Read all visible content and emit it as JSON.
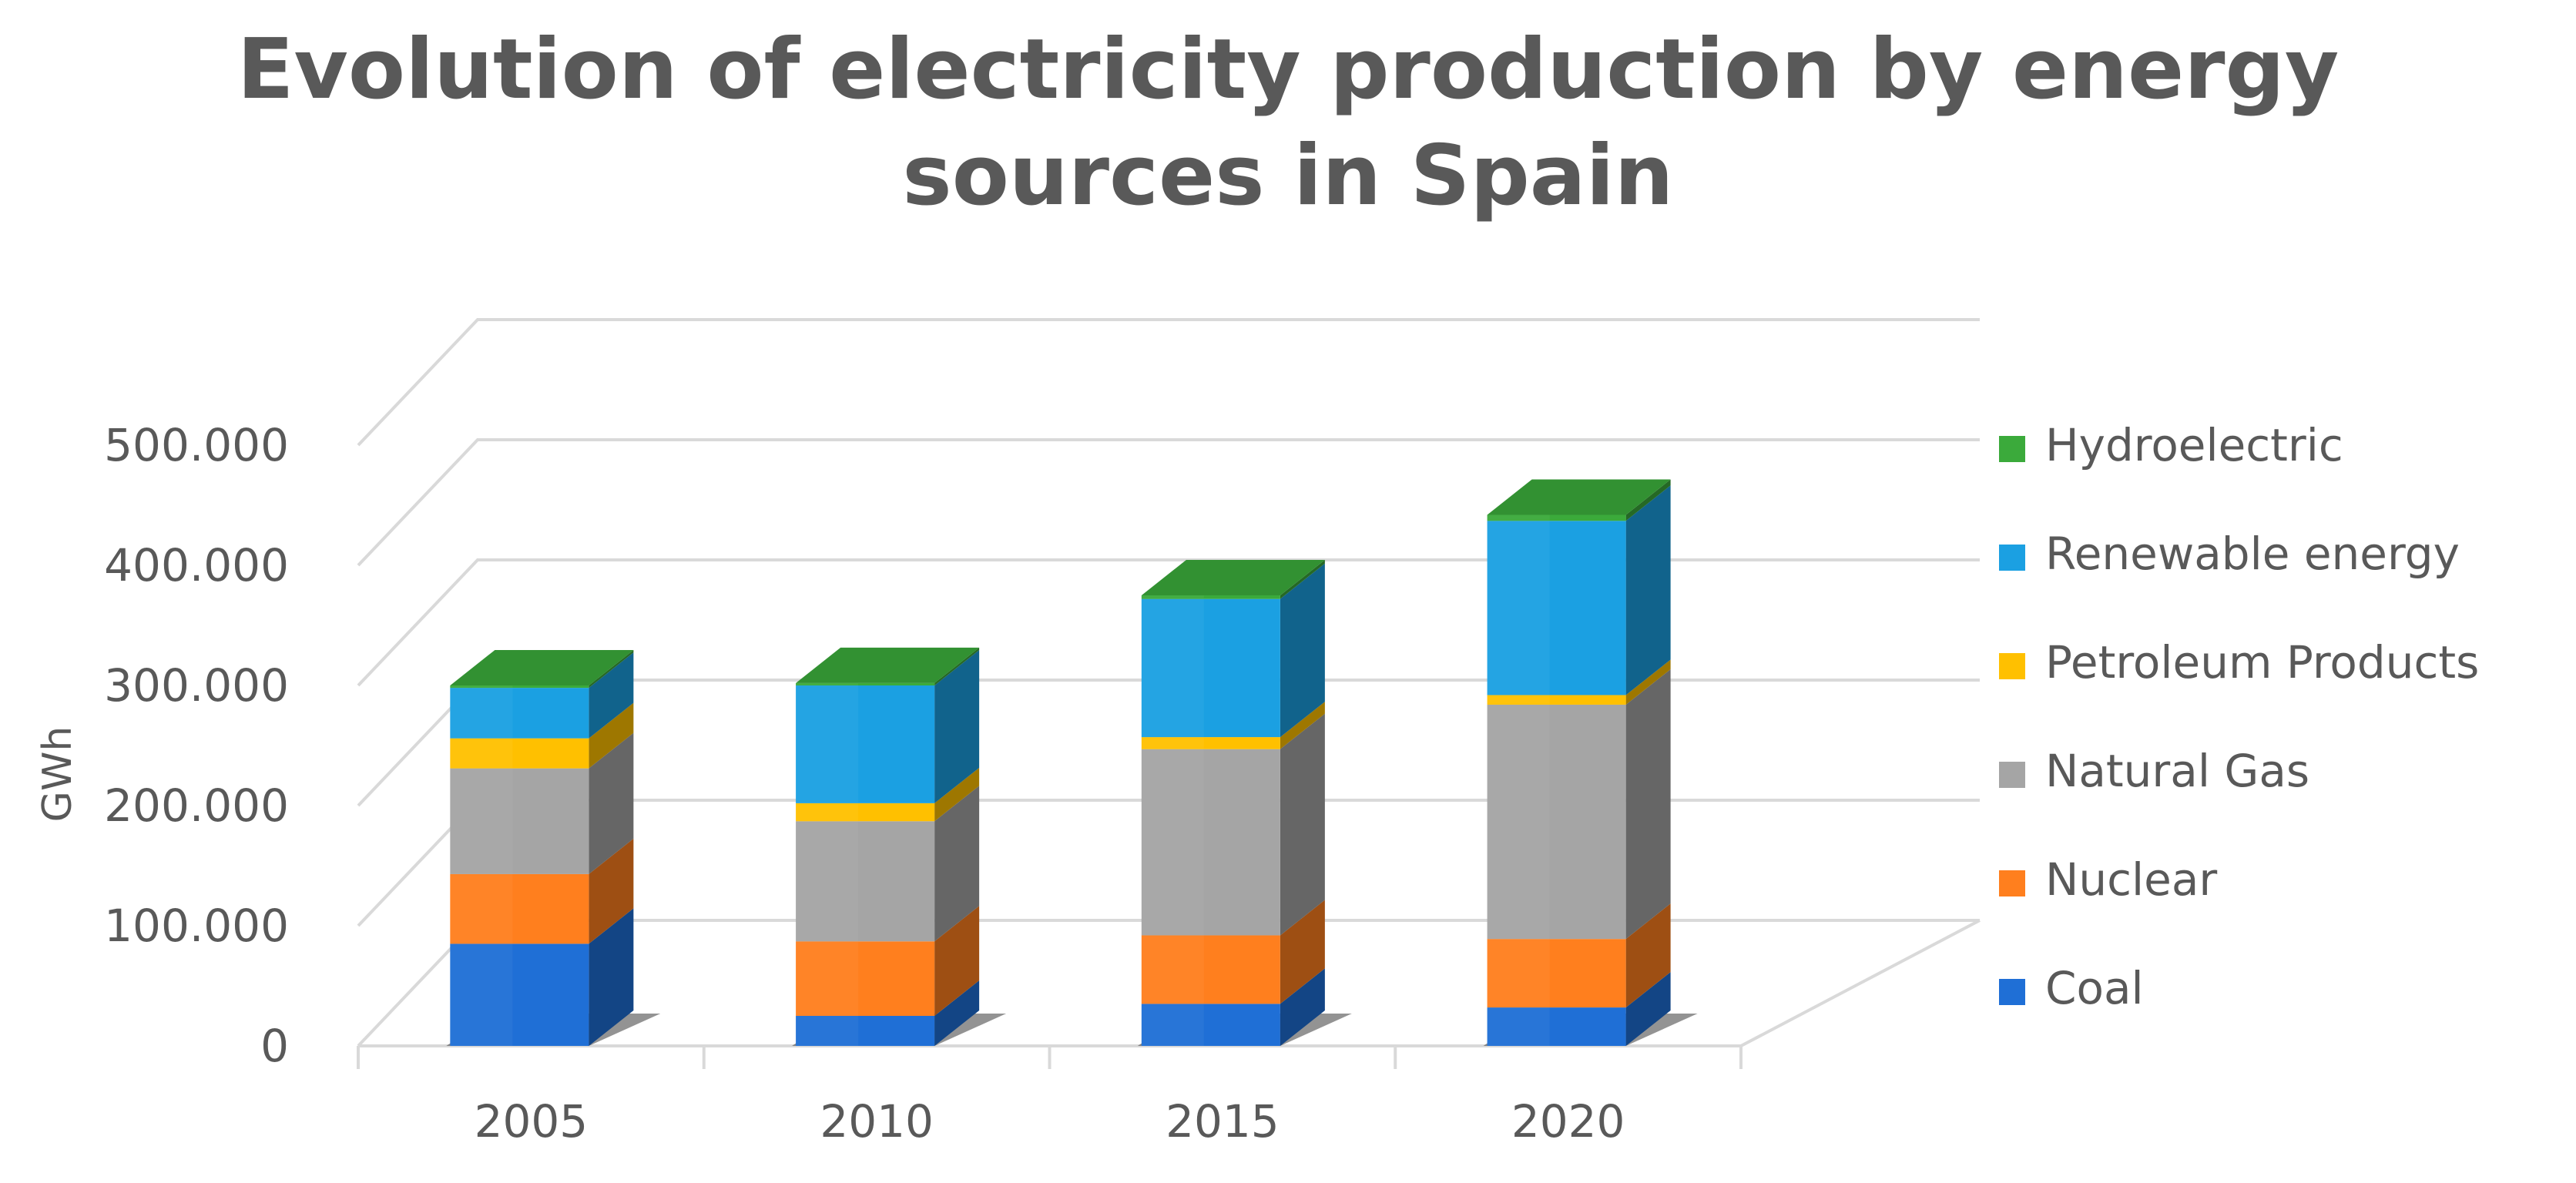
{
  "chart_data": {
    "type": "bar",
    "stacked": true,
    "three_d": true,
    "title": "Evolution of electricity production by energy sources in Spain",
    "title_lines": [
      "Evolution of electricity production by energy",
      "sources in Spain"
    ],
    "xlabel": "",
    "ylabel": "GWh",
    "ylim": [
      0,
      500000
    ],
    "yticks": [
      0,
      100000,
      200000,
      300000,
      400000,
      500000
    ],
    "ytick_labels": [
      "0",
      "100.000",
      "200.000",
      "300.000",
      "400.000",
      "500.000"
    ],
    "grid": true,
    "legend_position": "right",
    "categories": [
      "2005",
      "2010",
      "2015",
      "2020"
    ],
    "series": [
      {
        "name": "Coal",
        "color": "#1F6FD6",
        "values": [
          85000,
          25000,
          35000,
          32000
        ]
      },
      {
        "name": "Nuclear",
        "color": "#FF7F1E",
        "values": [
          58000,
          62000,
          57000,
          57000
        ]
      },
      {
        "name": "Natural Gas",
        "color": "#A5A5A5",
        "values": [
          88000,
          100000,
          155000,
          195000
        ]
      },
      {
        "name": "Petroleum Products",
        "color": "#FFC000",
        "values": [
          25000,
          15000,
          10000,
          8000
        ]
      },
      {
        "name": "Renewable energy",
        "color": "#1BA0E2",
        "values": [
          42000,
          98000,
          115000,
          145000
        ]
      },
      {
        "name": "Hydroelectric",
        "color": "#3BAA3B",
        "values": [
          2000,
          2000,
          3000,
          5000
        ]
      }
    ]
  }
}
